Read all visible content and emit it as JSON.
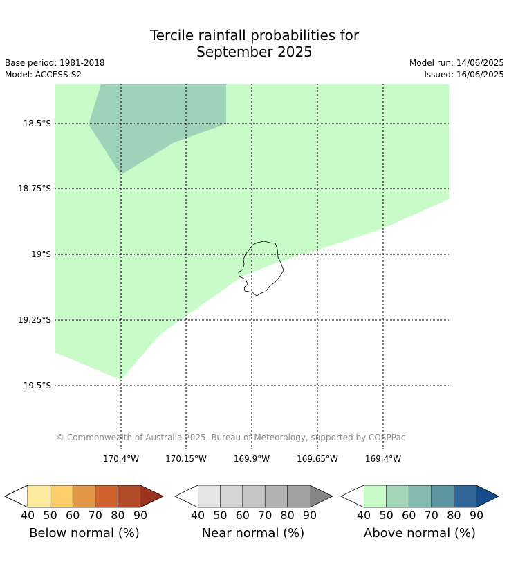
{
  "title": {
    "line1": "Tercile rainfall probabilities for",
    "line2": "September 2025"
  },
  "meta": {
    "base_period": "Base period: 1981-2018",
    "model": "Model: ACCESS-S2",
    "model_run": "Model run: 14/06/2025",
    "issued": "Issued: 16/06/2025"
  },
  "map": {
    "lat_labels": [
      "18.5°S",
      "18.75°S",
      "19°S",
      "19.25°S",
      "19.5°S"
    ],
    "lon_labels": [
      "170.4°W",
      "170.15°W",
      "169.9°W",
      "169.65°W",
      "169.4°W"
    ],
    "copyright": "© Commonwealth of Australia 2025, Bureau of Meteorology, supported by COSPPac",
    "fill_colors": {
      "above_50_60": "#c9fbc9",
      "above_60_70": "#9ed3b9"
    }
  },
  "colorbars": [
    {
      "name": "below",
      "label": "Below normal (%)",
      "ticks": [
        "40",
        "50",
        "60",
        "70",
        "80",
        "90"
      ],
      "colors": [
        "#ffeb9f",
        "#fed06b",
        "#e29747",
        "#cf622f",
        "#b34b28",
        "#9a3420"
      ]
    },
    {
      "name": "near",
      "label": "Near normal (%)",
      "ticks": [
        "40",
        "50",
        "60",
        "70",
        "80",
        "90"
      ],
      "colors": [
        "#e5e5e5",
        "#d6d6d6",
        "#c6c6c6",
        "#b3b3b3",
        "#a1a1a1",
        "#858585"
      ]
    },
    {
      "name": "above",
      "label": "Above normal (%)",
      "ticks": [
        "40",
        "50",
        "60",
        "70",
        "80",
        "90"
      ],
      "colors": [
        "#c9fbc9",
        "#a5d8b9",
        "#83b9ae",
        "#5c94a1",
        "#326699",
        "#154d8c"
      ]
    }
  ]
}
